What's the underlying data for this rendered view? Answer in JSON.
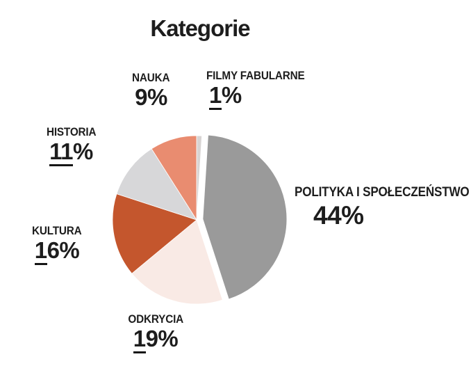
{
  "title": "Kategorie",
  "chart_data": {
    "type": "pie",
    "title": "Kategorie",
    "direction": "clockwise",
    "start_angle_deg": 0,
    "legend": "none",
    "grid": false,
    "background": "#ffffff",
    "text_color": "#1d1d1d",
    "slices": [
      {
        "label": "FILMY FABULARNE",
        "value": 1,
        "pct_text": "1%",
        "color": "#d8d4d3",
        "exploded": false
      },
      {
        "label": "POLITYKA I SPOŁECZEŃSTWO",
        "value": 44,
        "pct_text": "44%",
        "color": "#9a9a9a",
        "exploded": true
      },
      {
        "label": "ODKRYCIA",
        "value": 19,
        "pct_text": "19%",
        "color": "#f9eae5",
        "exploded": false
      },
      {
        "label": "KULTURA",
        "value": 16,
        "pct_text": "16%",
        "color": "#c4562d",
        "exploded": false
      },
      {
        "label": "HISTORIA",
        "value": 11,
        "pct_text": "11%",
        "color": "#d7d7d9",
        "exploded": false
      },
      {
        "label": "NAUKA",
        "value": 9,
        "pct_text": "9%",
        "color": "#e98c70",
        "exploded": false
      }
    ]
  }
}
